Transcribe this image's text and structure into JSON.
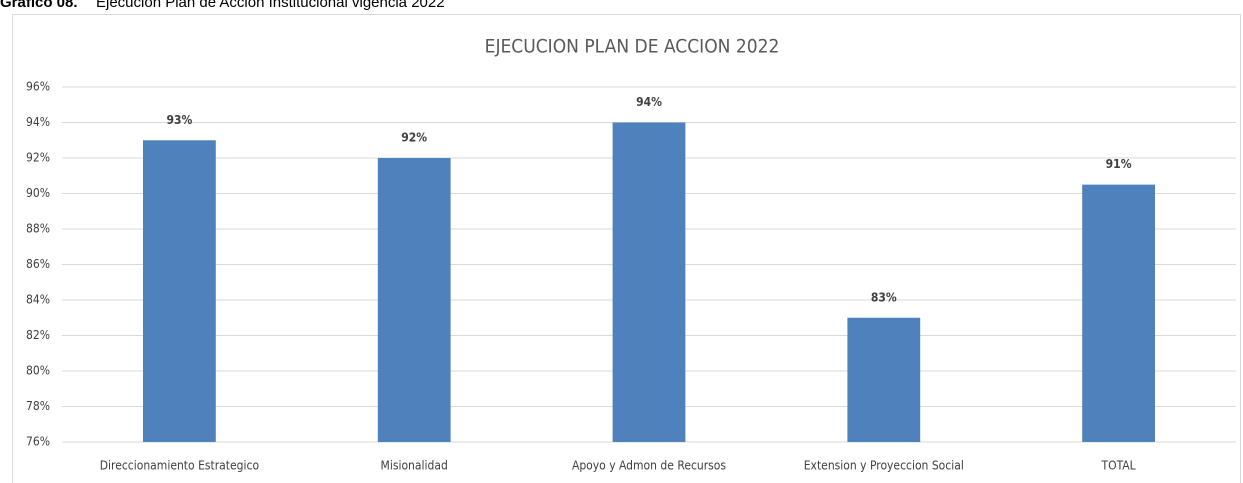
{
  "caption": {
    "label": "Gráfico 08.",
    "text": "Ejecución Plan de Acción Institucional vigencia 2022"
  },
  "chart_data": {
    "type": "bar",
    "title": "EJECUCION PLAN DE ACCION 2022",
    "categories": [
      "Direccionamiento Estrategico",
      "Misionalidad",
      "Apoyo y Admon de Recursos",
      "Extension y Proyeccion Social",
      "TOTAL"
    ],
    "values": [
      93,
      92,
      94,
      83,
      90.5
    ],
    "value_labels": [
      "93%",
      "92%",
      "94%",
      "83%",
      "91%"
    ],
    "color": "#4f81bd",
    "ylim": [
      76,
      96
    ],
    "yticks": [
      {
        "value": 76,
        "label": "76%"
      },
      {
        "value": 78,
        "label": "78%"
      },
      {
        "value": 80,
        "label": "80%"
      },
      {
        "value": 82,
        "label": "82%"
      },
      {
        "value": 84,
        "label": "84%"
      },
      {
        "value": 86,
        "label": "86%"
      },
      {
        "value": 88,
        "label": "88%"
      },
      {
        "value": 90,
        "label": "90%"
      },
      {
        "value": 92,
        "label": "92%"
      },
      {
        "value": 94,
        "label": "94%"
      },
      {
        "value": 96,
        "label": "96%"
      }
    ],
    "grid": true
  }
}
